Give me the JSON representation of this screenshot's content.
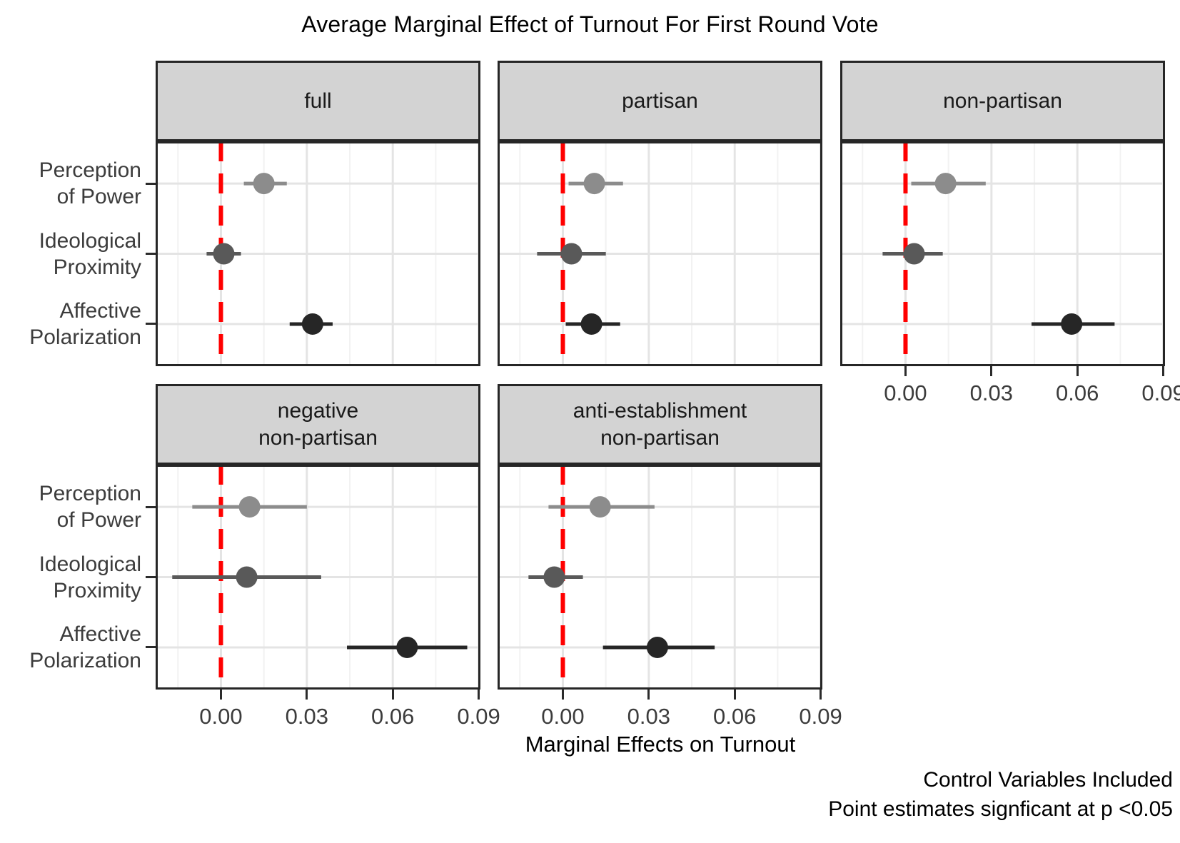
{
  "title": "Average Marginal Effect of Turnout For First Round Vote",
  "chart_data": {
    "type": "scatter",
    "subtype": "coefficient-dot-whisker",
    "title": "Average Marginal Effect of Turnout For First Round Vote",
    "xlabel": "Marginal Effects on Turnout",
    "ylabel": "",
    "xlim": [
      -0.0228,
      0.0906
    ],
    "x_major_ticks": {
      "labels": [
        "0.00",
        "0.03",
        "0.06",
        "0.09"
      ],
      "values": [
        0,
        0.03,
        0.06,
        0.09
      ]
    },
    "x_minor_ticks": [
      -0.015,
      0.015,
      0.045,
      0.075
    ],
    "reference_line": {
      "x": 0,
      "color": "#ff0000",
      "style": "dashed"
    },
    "grid": "on",
    "legend": "none",
    "colors": {
      "strip_fill": "#d3d3d3",
      "panel_border": "#262626",
      "grid_major": "#e4e4e4",
      "grid_minor": "#f2f2f2",
      "tick_mark": "#2b2b2b",
      "reference_red": "#ff0000"
    },
    "terms": [
      {
        "name": "Perception of Power",
        "label_lines": [
          "Perception",
          "of Power"
        ],
        "color": "#8c8c8c"
      },
      {
        "name": "Ideological Proximity",
        "label_lines": [
          "Ideological",
          "Proximity"
        ],
        "color": "#595959"
      },
      {
        "name": "Affective Polarization",
        "label_lines": [
          "Affective",
          "Polarization"
        ],
        "color": "#262626"
      }
    ],
    "facets": [
      {
        "label": "full",
        "label_lines": [
          "full"
        ],
        "grid_pos": {
          "row": 0,
          "col": 0
        },
        "show_x_axis": false,
        "estimates": [
          {
            "term": "Perception of Power",
            "value": 0.015,
            "ci_low": 0.008,
            "ci_high": 0.023
          },
          {
            "term": "Ideological Proximity",
            "value": 0.001,
            "ci_low": -0.005,
            "ci_high": 0.007
          },
          {
            "term": "Affective Polarization",
            "value": 0.032,
            "ci_low": 0.024,
            "ci_high": 0.039
          }
        ]
      },
      {
        "label": "partisan",
        "label_lines": [
          "partisan"
        ],
        "grid_pos": {
          "row": 0,
          "col": 1
        },
        "show_x_axis": false,
        "estimates": [
          {
            "term": "Perception of Power",
            "value": 0.011,
            "ci_low": 0.002,
            "ci_high": 0.021
          },
          {
            "term": "Ideological Proximity",
            "value": 0.003,
            "ci_low": -0.009,
            "ci_high": 0.015
          },
          {
            "term": "Affective Polarization",
            "value": 0.01,
            "ci_low": 0.001,
            "ci_high": 0.02
          }
        ]
      },
      {
        "label": "non-partisan",
        "label_lines": [
          "non-partisan"
        ],
        "grid_pos": {
          "row": 0,
          "col": 2
        },
        "show_x_axis": true,
        "estimates": [
          {
            "term": "Perception of Power",
            "value": 0.014,
            "ci_low": 0.002,
            "ci_high": 0.028
          },
          {
            "term": "Ideological Proximity",
            "value": 0.003,
            "ci_low": -0.008,
            "ci_high": 0.013
          },
          {
            "term": "Affective Polarization",
            "value": 0.058,
            "ci_low": 0.044,
            "ci_high": 0.073
          }
        ]
      },
      {
        "label": "negative non-partisan",
        "label_lines": [
          "negative",
          "non-partisan"
        ],
        "grid_pos": {
          "row": 1,
          "col": 0
        },
        "show_x_axis": true,
        "estimates": [
          {
            "term": "Perception of Power",
            "value": 0.01,
            "ci_low": -0.01,
            "ci_high": 0.03
          },
          {
            "term": "Ideological Proximity",
            "value": 0.009,
            "ci_low": -0.017,
            "ci_high": 0.035
          },
          {
            "term": "Affective Polarization",
            "value": 0.065,
            "ci_low": 0.044,
            "ci_high": 0.086
          }
        ]
      },
      {
        "label": "anti-establishment non-partisan",
        "label_lines": [
          "anti-establishment",
          "non-partisan"
        ],
        "grid_pos": {
          "row": 1,
          "col": 1
        },
        "show_x_axis": true,
        "estimates": [
          {
            "term": "Perception of Power",
            "value": 0.013,
            "ci_low": -0.005,
            "ci_high": 0.032
          },
          {
            "term": "Ideological Proximity",
            "value": -0.003,
            "ci_low": -0.012,
            "ci_high": 0.007
          },
          {
            "term": "Affective Polarization",
            "value": 0.033,
            "ci_low": 0.014,
            "ci_high": 0.053
          }
        ]
      }
    ],
    "caption_lines": [
      "Control Variables Included",
      "Point estimates signficant at p <0.05"
    ]
  }
}
